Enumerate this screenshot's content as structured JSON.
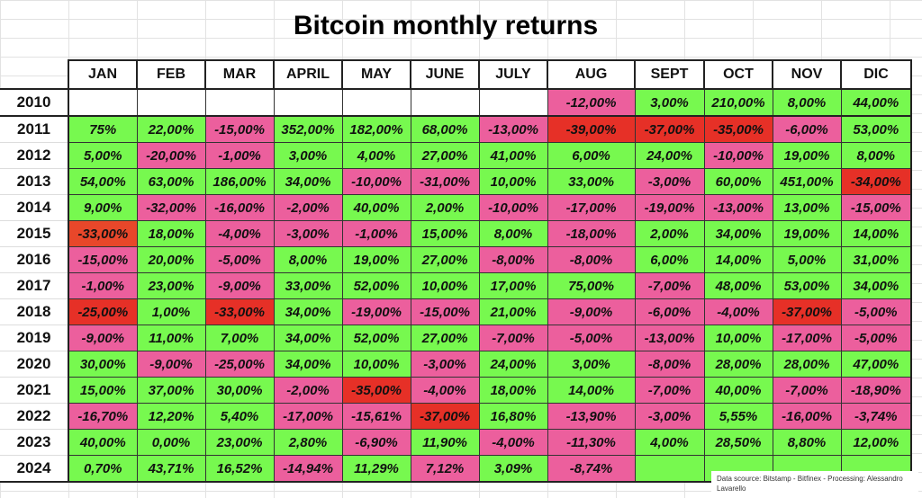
{
  "title": "Bitcoin monthly returns",
  "months": [
    "JAN",
    "FEB",
    "MAR",
    "APRIL",
    "MAY",
    "JUNE",
    "JULY",
    "AUG",
    "SEPT",
    "OCT",
    "NOV",
    "DIC"
  ],
  "colors": {
    "g": "#77f94f",
    "p": "#ec5f9d",
    "r": "#e63027",
    "o": "#e8472a",
    "e": "#ffffff"
  },
  "rows": [
    {
      "year": "2010",
      "values": [
        "",
        "",
        "",
        "",
        "",
        "",
        "",
        "-12,00%",
        "3,00%",
        "210,00%",
        "8,00%",
        "44,00%"
      ],
      "colors": [
        "e",
        "e",
        "e",
        "e",
        "e",
        "e",
        "e",
        "p",
        "g",
        "g",
        "g",
        "g"
      ]
    },
    {
      "year": "2011",
      "values": [
        "75%",
        "22,00%",
        "-15,00%",
        "352,00%",
        "182,00%",
        "68,00%",
        "-13,00%",
        "-39,00%",
        "-37,00%",
        "-35,00%",
        "-6,00%",
        "53,00%"
      ],
      "colors": [
        "g",
        "g",
        "p",
        "g",
        "g",
        "g",
        "p",
        "r",
        "r",
        "r",
        "p",
        "g"
      ]
    },
    {
      "year": "2012",
      "values": [
        "5,00%",
        "-20,00%",
        "-1,00%",
        "3,00%",
        "4,00%",
        "27,00%",
        "41,00%",
        "6,00%",
        "24,00%",
        "-10,00%",
        "19,00%",
        "8,00%"
      ],
      "colors": [
        "g",
        "p",
        "p",
        "g",
        "g",
        "g",
        "g",
        "g",
        "g",
        "p",
        "g",
        "g"
      ]
    },
    {
      "year": "2013",
      "values": [
        "54,00%",
        "63,00%",
        "186,00%",
        "34,00%",
        "-10,00%",
        "-31,00%",
        "10,00%",
        "33,00%",
        "-3,00%",
        "60,00%",
        "451,00%",
        "-34,00%"
      ],
      "colors": [
        "g",
        "g",
        "g",
        "g",
        "p",
        "p",
        "g",
        "g",
        "p",
        "g",
        "g",
        "r"
      ]
    },
    {
      "year": "2014",
      "values": [
        "9,00%",
        "-32,00%",
        "-16,00%",
        "-2,00%",
        "40,00%",
        "2,00%",
        "-10,00%",
        "-17,00%",
        "-19,00%",
        "-13,00%",
        "13,00%",
        "-15,00%"
      ],
      "colors": [
        "g",
        "p",
        "p",
        "p",
        "g",
        "g",
        "p",
        "p",
        "p",
        "p",
        "g",
        "p"
      ]
    },
    {
      "year": "2015",
      "values": [
        "-33,00%",
        "18,00%",
        "-4,00%",
        "-3,00%",
        "-1,00%",
        "15,00%",
        "8,00%",
        "-18,00%",
        "2,00%",
        "34,00%",
        "19,00%",
        "14,00%"
      ],
      "colors": [
        "o",
        "g",
        "p",
        "p",
        "p",
        "g",
        "g",
        "p",
        "g",
        "g",
        "g",
        "g"
      ]
    },
    {
      "year": "2016",
      "values": [
        "-15,00%",
        "20,00%",
        "-5,00%",
        "8,00%",
        "19,00%",
        "27,00%",
        "-8,00%",
        "-8,00%",
        "6,00%",
        "14,00%",
        "5,00%",
        "31,00%"
      ],
      "colors": [
        "p",
        "g",
        "p",
        "g",
        "g",
        "g",
        "p",
        "p",
        "g",
        "g",
        "g",
        "g"
      ]
    },
    {
      "year": "2017",
      "values": [
        "-1,00%",
        "23,00%",
        "-9,00%",
        "33,00%",
        "52,00%",
        "10,00%",
        "17,00%",
        "75,00%",
        "-7,00%",
        "48,00%",
        "53,00%",
        "34,00%"
      ],
      "colors": [
        "p",
        "g",
        "p",
        "g",
        "g",
        "g",
        "g",
        "g",
        "p",
        "g",
        "g",
        "g"
      ]
    },
    {
      "year": "2018",
      "values": [
        "-25,00%",
        "1,00%",
        "-33,00%",
        "34,00%",
        "-19,00%",
        "-15,00%",
        "21,00%",
        "-9,00%",
        "-6,00%",
        "-4,00%",
        "-37,00%",
        "-5,00%"
      ],
      "colors": [
        "r",
        "g",
        "r",
        "g",
        "p",
        "p",
        "g",
        "p",
        "p",
        "p",
        "r",
        "p"
      ]
    },
    {
      "year": "2019",
      "values": [
        "-9,00%",
        "11,00%",
        "7,00%",
        "34,00%",
        "52,00%",
        "27,00%",
        "-7,00%",
        "-5,00%",
        "-13,00%",
        "10,00%",
        "-17,00%",
        "-5,00%"
      ],
      "colors": [
        "p",
        "g",
        "g",
        "g",
        "g",
        "g",
        "p",
        "p",
        "p",
        "g",
        "p",
        "p"
      ]
    },
    {
      "year": "2020",
      "values": [
        "30,00%",
        "-9,00%",
        "-25,00%",
        "34,00%",
        "10,00%",
        "-3,00%",
        "24,00%",
        "3,00%",
        "-8,00%",
        "28,00%",
        "28,00%",
        "47,00%"
      ],
      "colors": [
        "g",
        "p",
        "p",
        "g",
        "g",
        "p",
        "g",
        "g",
        "p",
        "g",
        "g",
        "g"
      ]
    },
    {
      "year": "2021",
      "values": [
        "15,00%",
        "37,00%",
        "30,00%",
        "-2,00%",
        "-35,00%",
        "-4,00%",
        "18,00%",
        "14,00%",
        "-7,00%",
        "40,00%",
        "-7,00%",
        "-18,90%"
      ],
      "colors": [
        "g",
        "g",
        "g",
        "p",
        "r",
        "p",
        "g",
        "g",
        "p",
        "g",
        "p",
        "p"
      ]
    },
    {
      "year": "2022",
      "values": [
        "-16,70%",
        "12,20%",
        "5,40%",
        "-17,00%",
        "-15,61%",
        "-37,00%",
        "16,80%",
        "-13,90%",
        "-3,00%",
        "5,55%",
        "-16,00%",
        "-3,74%"
      ],
      "colors": [
        "p",
        "g",
        "g",
        "p",
        "p",
        "r",
        "g",
        "p",
        "p",
        "g",
        "p",
        "p"
      ]
    },
    {
      "year": "2023",
      "values": [
        "40,00%",
        "0,00%",
        "23,00%",
        "2,80%",
        "-6,90%",
        "11,90%",
        "-4,00%",
        "-11,30%",
        "4,00%",
        "28,50%",
        "8,80%",
        "12,00%"
      ],
      "colors": [
        "g",
        "g",
        "g",
        "g",
        "p",
        "g",
        "p",
        "p",
        "g",
        "g",
        "g",
        "g"
      ]
    },
    {
      "year": "2024",
      "values": [
        "0,70%",
        "43,71%",
        "16,52%",
        "-14,94%",
        "11,29%",
        "7,12%",
        "3,09%",
        "-8,74%",
        "",
        "",
        "",
        ""
      ],
      "colors": [
        "g",
        "g",
        "g",
        "p",
        "g",
        "p",
        "g",
        "p",
        "g",
        "g",
        "g",
        "g"
      ]
    }
  ],
  "note": "Data scource: Bitstamp - Bitfinex - Processing: Alessandro Lavarello"
}
